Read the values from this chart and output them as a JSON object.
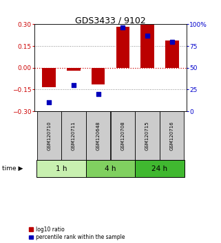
{
  "title": "GDS3433 / 9102",
  "samples": [
    "GSM120710",
    "GSM120711",
    "GSM120648",
    "GSM120708",
    "GSM120715",
    "GSM120716"
  ],
  "log10_ratio": [
    -0.135,
    -0.02,
    -0.115,
    0.285,
    0.295,
    0.19
  ],
  "percentile_rank": [
    10,
    30,
    20,
    96,
    87,
    80
  ],
  "time_groups": [
    {
      "label": "1 h",
      "start": 0,
      "end": 2,
      "color": "#c8f0b0"
    },
    {
      "label": "4 h",
      "start": 2,
      "end": 4,
      "color": "#80d060"
    },
    {
      "label": "24 h",
      "start": 4,
      "end": 6,
      "color": "#40b830"
    }
  ],
  "ylim_left": [
    -0.3,
    0.3
  ],
  "ylim_right": [
    0,
    100
  ],
  "yticks_left": [
    -0.3,
    -0.15,
    0,
    0.15,
    0.3
  ],
  "yticks_right": [
    0,
    25,
    50,
    75,
    100
  ],
  "bar_color": "#bb0000",
  "dot_color": "#0000bb",
  "left_axis_color": "#cc0000",
  "right_axis_color": "#0000cc",
  "hline_color": "#cc0000",
  "dotted_color": "#888888",
  "bg_color": "#ffffff",
  "bar_width": 0.55,
  "dot_size": 18,
  "label_box_color": "#cccccc",
  "title_fontsize": 9,
  "tick_fontsize": 6.5,
  "sample_fontsize": 5.0,
  "time_fontsize": 7.5,
  "legend_fontsize": 5.5
}
